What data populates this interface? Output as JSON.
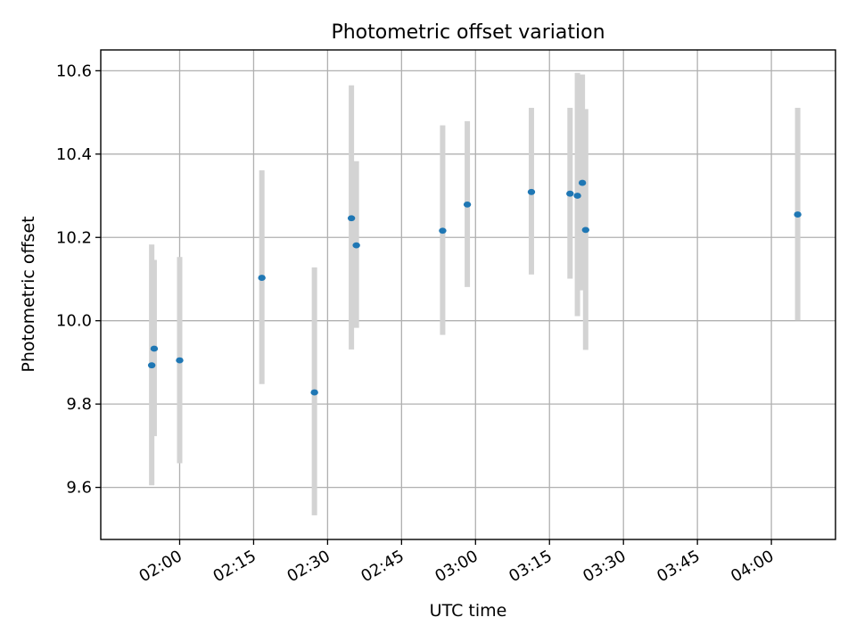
{
  "chart_data": {
    "type": "scatter",
    "title": "Photometric offset variation",
    "xlabel": "UTC time",
    "ylabel": "Photometric offset",
    "xlim": [
      "01:44",
      "04:13"
    ],
    "ylim": [
      9.475,
      10.65
    ],
    "grid": true,
    "x_ticks": [
      "02:00",
      "02:15",
      "02:30",
      "02:45",
      "03:00",
      "03:15",
      "03:30",
      "03:45",
      "04:00"
    ],
    "y_ticks": [
      9.6,
      9.8,
      10.0,
      10.2,
      10.4,
      10.6
    ],
    "y_tick_labels": [
      "9.6",
      "9.8",
      "10.0",
      "10.2",
      "10.4",
      "10.6"
    ],
    "marker_color": "#1f77b4",
    "errorbar_color": "#d3d3d3",
    "points": [
      {
        "x": "01:54:20",
        "y": 9.893,
        "ylo": 9.605,
        "yhi": 10.183
      },
      {
        "x": "01:54:50",
        "y": 9.933,
        "ylo": 9.723,
        "yhi": 10.146
      },
      {
        "x": "02:00:00",
        "y": 9.905,
        "ylo": 9.658,
        "yhi": 10.153
      },
      {
        "x": "02:16:40",
        "y": 10.103,
        "ylo": 9.848,
        "yhi": 10.361
      },
      {
        "x": "02:27:20",
        "y": 9.828,
        "ylo": 9.533,
        "yhi": 10.128
      },
      {
        "x": "02:34:50",
        "y": 10.246,
        "ylo": 9.931,
        "yhi": 10.565
      },
      {
        "x": "02:35:50",
        "y": 10.181,
        "ylo": 9.983,
        "yhi": 10.383
      },
      {
        "x": "02:53:20",
        "y": 10.216,
        "ylo": 9.966,
        "yhi": 10.469
      },
      {
        "x": "02:58:20",
        "y": 10.279,
        "ylo": 10.081,
        "yhi": 10.479
      },
      {
        "x": "03:11:20",
        "y": 10.309,
        "ylo": 10.111,
        "yhi": 10.511
      },
      {
        "x": "03:19:10",
        "y": 10.305,
        "ylo": 10.101,
        "yhi": 10.511
      },
      {
        "x": "03:20:40",
        "y": 10.3,
        "ylo": 10.011,
        "yhi": 10.595
      },
      {
        "x": "03:21:40",
        "y": 10.331,
        "ylo": 10.073,
        "yhi": 10.591
      },
      {
        "x": "03:22:20",
        "y": 10.218,
        "ylo": 9.93,
        "yhi": 10.508
      },
      {
        "x": "04:05:20",
        "y": 10.255,
        "ylo": 10.001,
        "yhi": 10.511
      }
    ]
  }
}
